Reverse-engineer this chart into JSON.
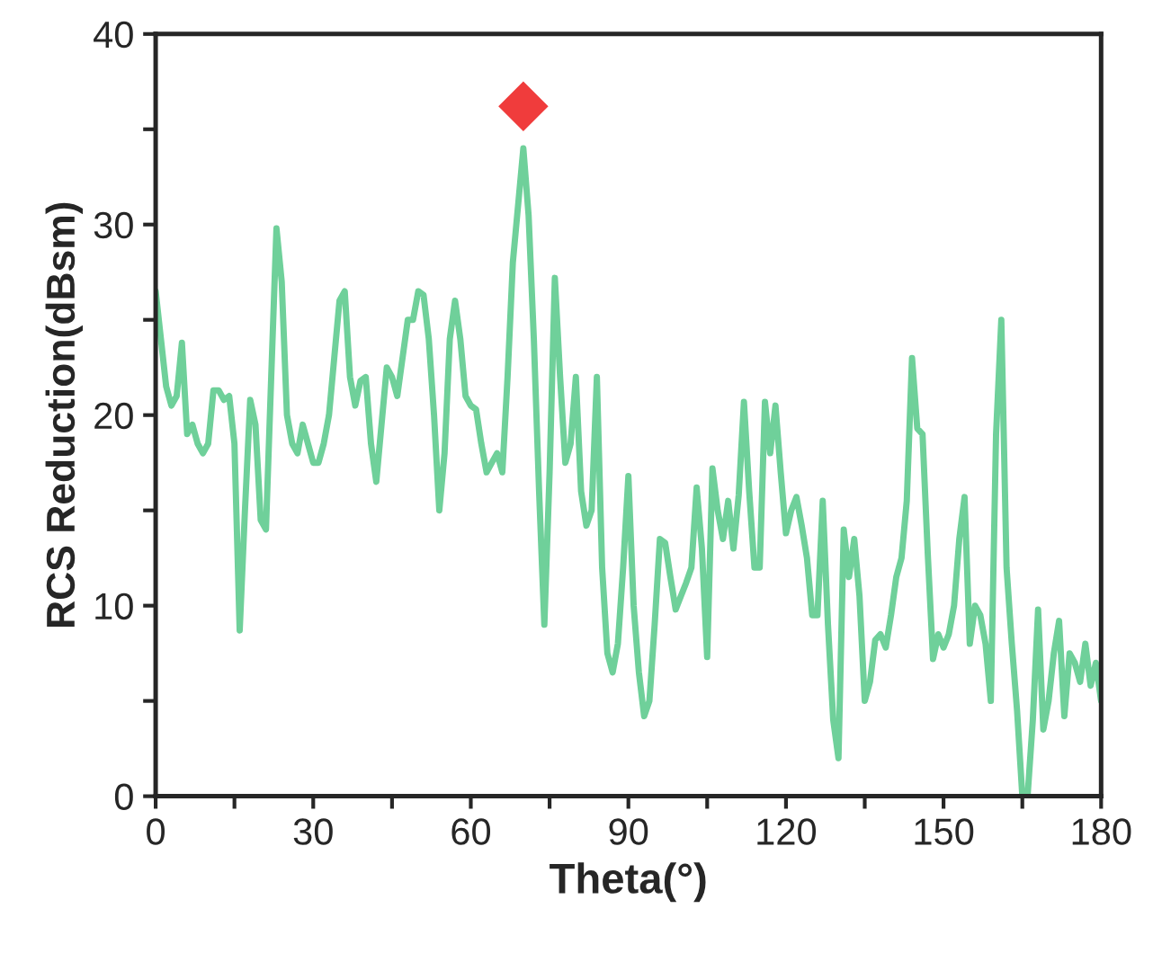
{
  "chart_data": {
    "type": "line",
    "xlabel": "Theta(°)",
    "ylabel": "RCS Reduction(dBsm)",
    "xlim": [
      0,
      180
    ],
    "ylim": [
      0,
      40
    ],
    "xticks": [
      0,
      {
        "value": 15,
        "label": null
      },
      30,
      {
        "value": 45,
        "label": null
      },
      60,
      {
        "value": 75,
        "label": null
      },
      90,
      {
        "value": 105,
        "label": null
      },
      120,
      {
        "value": 135,
        "label": null
      },
      150,
      {
        "value": 165,
        "label": null
      },
      180
    ],
    "yticks": [
      0,
      {
        "value": 5,
        "label": null
      },
      10,
      {
        "value": 15,
        "label": null
      },
      20,
      {
        "value": 25,
        "label": null
      },
      30,
      {
        "value": 35,
        "label": null
      },
      40
    ],
    "grid": false,
    "series": [
      {
        "color": "#6fd09a",
        "marker": "none",
        "line_style": "solid",
        "x": [
          0,
          1,
          2,
          3,
          4,
          5,
          6,
          7,
          8,
          9,
          10,
          11,
          12,
          13,
          14,
          15,
          16,
          17,
          18,
          19,
          20,
          21,
          22,
          23,
          24,
          25,
          26,
          27,
          28,
          29,
          30,
          31,
          32,
          33,
          34,
          35,
          36,
          37,
          38,
          39,
          40,
          41,
          42,
          43,
          44,
          45,
          46,
          47,
          48,
          49,
          50,
          51,
          52,
          53,
          54,
          55,
          56,
          57,
          58,
          59,
          60,
          61,
          62,
          63,
          64,
          65,
          66,
          67,
          68,
          69,
          70,
          71,
          72,
          73,
          74,
          75,
          76,
          77,
          78,
          79,
          80,
          81,
          82,
          83,
          84,
          85,
          86,
          87,
          88,
          89,
          90,
          91,
          92,
          93,
          94,
          95,
          96,
          97,
          98,
          99,
          100,
          101,
          102,
          103,
          104,
          105,
          106,
          107,
          108,
          109,
          110,
          111,
          112,
          113,
          114,
          115,
          116,
          117,
          118,
          119,
          120,
          121,
          122,
          123,
          124,
          125,
          126,
          127,
          128,
          129,
          130,
          131,
          132,
          133,
          134,
          135,
          136,
          137,
          138,
          139,
          140,
          141,
          142,
          143,
          144,
          145,
          146,
          147,
          148,
          149,
          150,
          151,
          152,
          153,
          154,
          155,
          156,
          157,
          158,
          159,
          160,
          161,
          162,
          163,
          164,
          165,
          166,
          167,
          168,
          169,
          170,
          171,
          172,
          173,
          174,
          175,
          176,
          177,
          178,
          179,
          180
        ],
        "values": [
          26.5,
          24,
          21.5,
          20.5,
          21,
          23.8,
          19,
          19.5,
          18.5,
          18,
          18.5,
          21.3,
          21.3,
          20.8,
          21,
          18.5,
          8.7,
          15,
          20.8,
          19.5,
          14.5,
          14,
          22,
          29.8,
          27,
          20,
          18.5,
          18,
          19.5,
          18.5,
          17.5,
          17.5,
          18.5,
          20,
          23,
          26,
          26.5,
          22,
          20.5,
          21.8,
          22,
          18.5,
          16.5,
          19.5,
          22.5,
          22,
          21,
          23,
          25,
          25,
          26.5,
          26.3,
          24,
          20,
          15,
          18,
          24,
          26,
          24,
          21,
          20.5,
          20.3,
          18.5,
          17,
          17.5,
          18,
          17,
          22,
          28,
          31,
          34,
          30.5,
          24,
          16,
          9,
          17,
          27.2,
          22,
          17.5,
          18.5,
          22,
          16,
          14.2,
          15,
          22,
          12,
          7.5,
          6.5,
          8,
          12,
          16.8,
          10,
          6.5,
          4.2,
          5,
          9,
          13.5,
          13.3,
          11.5,
          9.8,
          10.5,
          11.2,
          12,
          16.2,
          13,
          7.3,
          17.2,
          15,
          13.5,
          15.5,
          13,
          15.8,
          20.7,
          16,
          12,
          12,
          20.7,
          18,
          20.5,
          17,
          13.8,
          15,
          15.7,
          14.2,
          12.5,
          9.5,
          9.5,
          15.5,
          9,
          4,
          2,
          14,
          11.5,
          13.5,
          10.5,
          5,
          6,
          8.2,
          8.5,
          7.8,
          9.5,
          11.5,
          12.5,
          15.5,
          23,
          19.3,
          19,
          12.7,
          7.2,
          8.5,
          7.8,
          8.5,
          10,
          13.5,
          15.7,
          8,
          10,
          9.5,
          8,
          5,
          19,
          25,
          12,
          8,
          4.5,
          0,
          0,
          4,
          9.8,
          3.5,
          5,
          7.5,
          9.2,
          4.2,
          7.5,
          7,
          6,
          8,
          5.8,
          7,
          5
        ]
      },
      {
        "type": "scatter",
        "color": "#f03c3c",
        "marker": "diamond",
        "x": [
          70
        ],
        "values": [
          36.2
        ]
      }
    ]
  }
}
